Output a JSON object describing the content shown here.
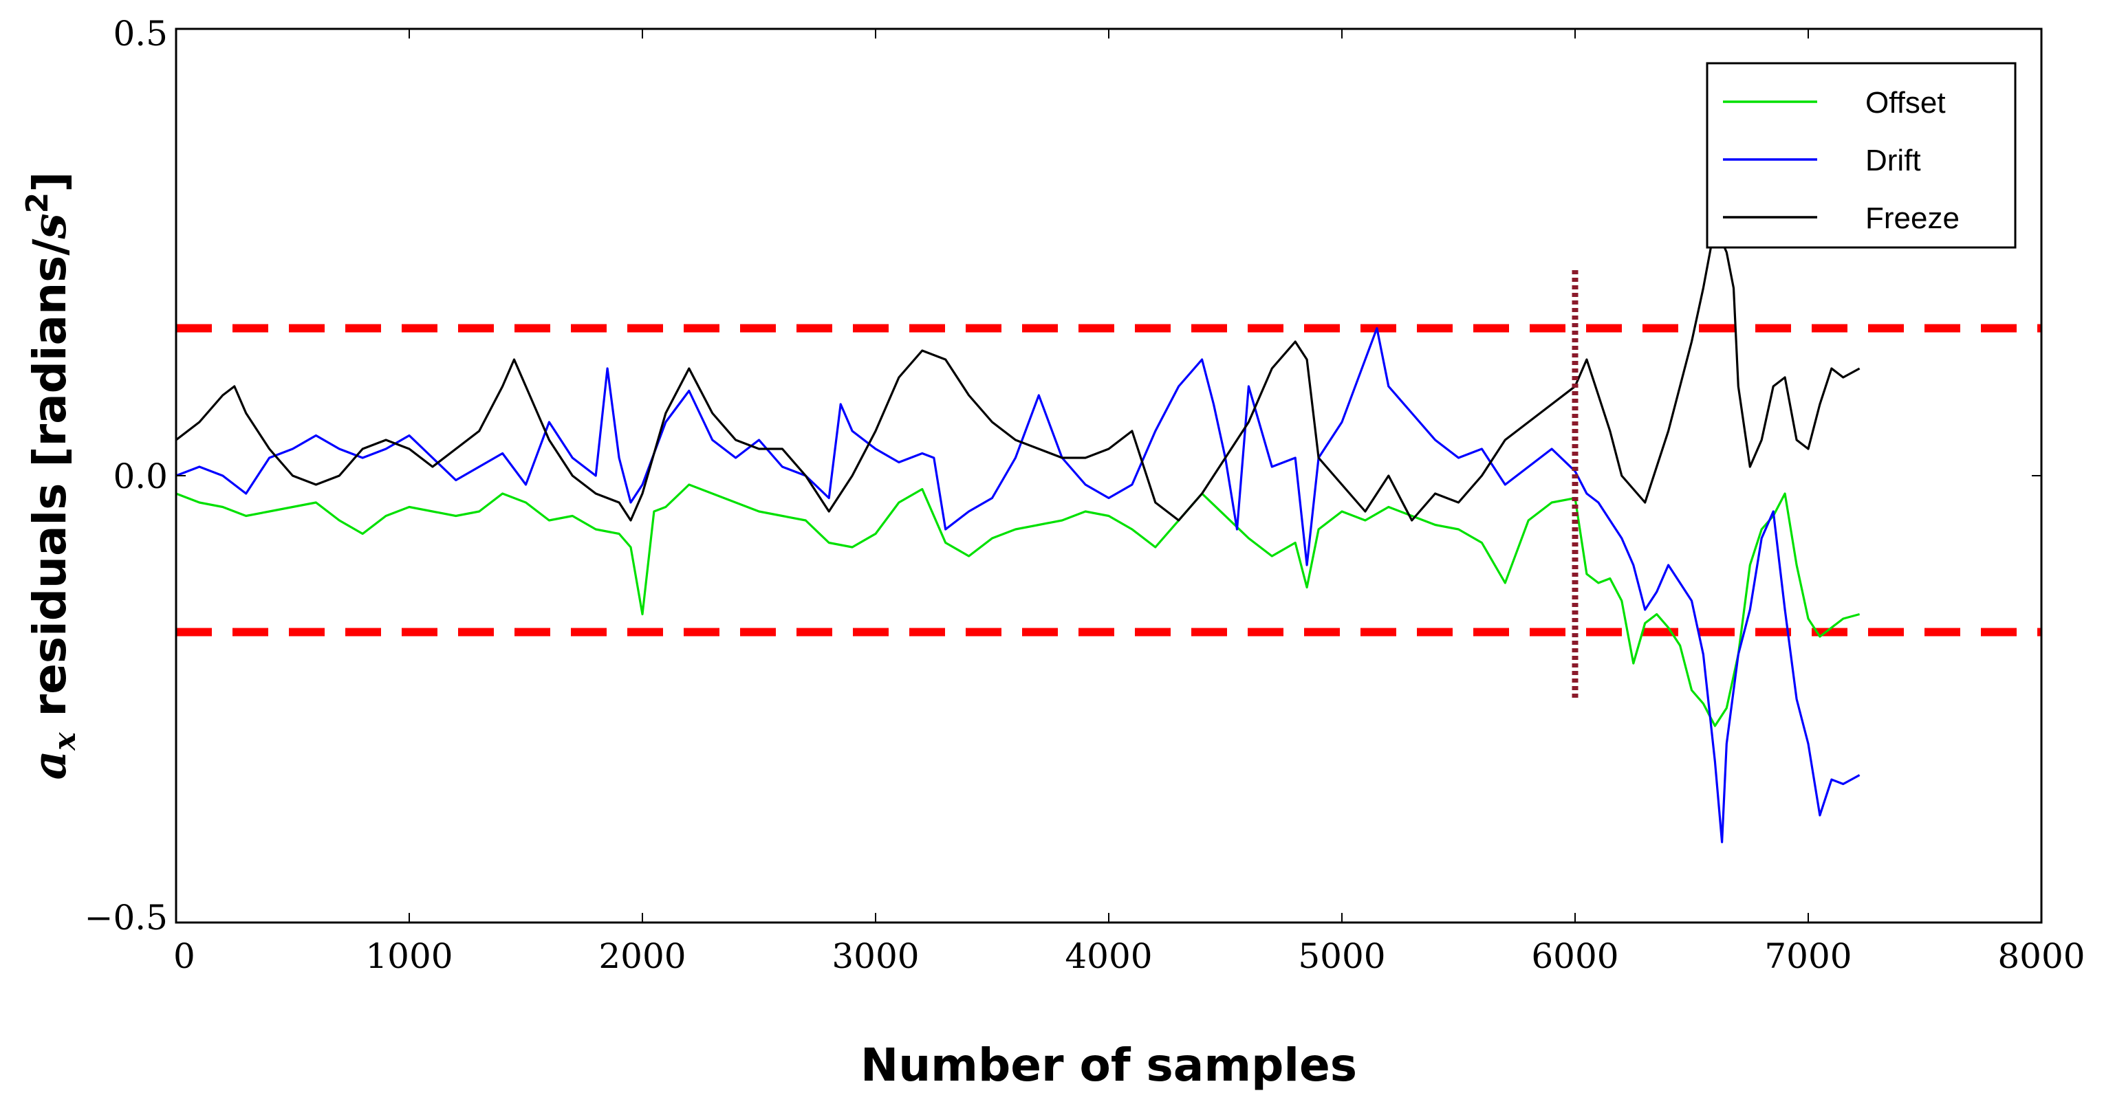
{
  "chart_data": {
    "type": "line",
    "title": "",
    "xlabel": "Number of samples",
    "ylabel": "a_x residuals [radians/s^2]",
    "ylabel_parts": {
      "symbol": "a",
      "subscript": "x",
      "middle": " residuals [radians/",
      "unit_symbol": "s",
      "unit_exp": "2",
      "end": "]"
    },
    "xlim": [
      0,
      8000
    ],
    "ylim": [
      -0.5,
      0.5
    ],
    "x_ticks": [
      0,
      1000,
      2000,
      3000,
      4000,
      5000,
      6000,
      7000,
      8000
    ],
    "x_tick_labels": [
      "0",
      "1000",
      "2000",
      "3000",
      "4000",
      "5000",
      "6000",
      "7000",
      "8000"
    ],
    "y_ticks": [
      -0.5,
      0.0,
      0.5
    ],
    "y_tick_labels": [
      "−0.5",
      "0.0",
      "0.5"
    ],
    "grid": false,
    "legend_position": "top-right",
    "thresholds": [
      {
        "name": "upper-threshold",
        "y": 0.165,
        "color": "#ff0000",
        "style": "dashed"
      },
      {
        "name": "lower-threshold",
        "y": -0.175,
        "color": "#ff0000",
        "style": "dashed"
      }
    ],
    "markers": [
      {
        "name": "fault-onset-marker",
        "x": 6000,
        "y_range": [
          -0.25,
          0.23
        ],
        "color": "#8b1a2b",
        "style": "dotted"
      }
    ],
    "series": [
      {
        "name": "Offset",
        "color": "#00e000",
        "points": [
          [
            0,
            -0.02
          ],
          [
            100,
            -0.03
          ],
          [
            200,
            -0.035
          ],
          [
            300,
            -0.045
          ],
          [
            400,
            -0.04
          ],
          [
            500,
            -0.035
          ],
          [
            600,
            -0.03
          ],
          [
            700,
            -0.05
          ],
          [
            800,
            -0.065
          ],
          [
            900,
            -0.045
          ],
          [
            1000,
            -0.035
          ],
          [
            1100,
            -0.04
          ],
          [
            1200,
            -0.045
          ],
          [
            1300,
            -0.04
          ],
          [
            1400,
            -0.02
          ],
          [
            1500,
            -0.03
          ],
          [
            1600,
            -0.05
          ],
          [
            1700,
            -0.045
          ],
          [
            1800,
            -0.06
          ],
          [
            1900,
            -0.065
          ],
          [
            1950,
            -0.08
          ],
          [
            2000,
            -0.155
          ],
          [
            2050,
            -0.04
          ],
          [
            2100,
            -0.035
          ],
          [
            2200,
            -0.01
          ],
          [
            2300,
            -0.02
          ],
          [
            2400,
            -0.03
          ],
          [
            2500,
            -0.04
          ],
          [
            2600,
            -0.045
          ],
          [
            2700,
            -0.05
          ],
          [
            2800,
            -0.075
          ],
          [
            2900,
            -0.08
          ],
          [
            3000,
            -0.065
          ],
          [
            3100,
            -0.03
          ],
          [
            3200,
            -0.015
          ],
          [
            3300,
            -0.075
          ],
          [
            3400,
            -0.09
          ],
          [
            3500,
            -0.07
          ],
          [
            3600,
            -0.06
          ],
          [
            3700,
            -0.055
          ],
          [
            3800,
            -0.05
          ],
          [
            3900,
            -0.04
          ],
          [
            4000,
            -0.045
          ],
          [
            4100,
            -0.06
          ],
          [
            4200,
            -0.08
          ],
          [
            4300,
            -0.05
          ],
          [
            4400,
            -0.02
          ],
          [
            4500,
            -0.045
          ],
          [
            4600,
            -0.07
          ],
          [
            4700,
            -0.09
          ],
          [
            4800,
            -0.075
          ],
          [
            4850,
            -0.125
          ],
          [
            4900,
            -0.06
          ],
          [
            5000,
            -0.04
          ],
          [
            5100,
            -0.05
          ],
          [
            5200,
            -0.035
          ],
          [
            5300,
            -0.045
          ],
          [
            5400,
            -0.055
          ],
          [
            5500,
            -0.06
          ],
          [
            5600,
            -0.075
          ],
          [
            5700,
            -0.12
          ],
          [
            5800,
            -0.05
          ],
          [
            5900,
            -0.03
          ],
          [
            6000,
            -0.025
          ],
          [
            6050,
            -0.11
          ],
          [
            6100,
            -0.12
          ],
          [
            6150,
            -0.115
          ],
          [
            6200,
            -0.14
          ],
          [
            6250,
            -0.21
          ],
          [
            6300,
            -0.165
          ],
          [
            6350,
            -0.155
          ],
          [
            6400,
            -0.17
          ],
          [
            6450,
            -0.19
          ],
          [
            6500,
            -0.24
          ],
          [
            6550,
            -0.255
          ],
          [
            6600,
            -0.28
          ],
          [
            6650,
            -0.26
          ],
          [
            6700,
            -0.2
          ],
          [
            6750,
            -0.1
          ],
          [
            6800,
            -0.06
          ],
          [
            6850,
            -0.045
          ],
          [
            6900,
            -0.02
          ],
          [
            6950,
            -0.1
          ],
          [
            7000,
            -0.16
          ],
          [
            7050,
            -0.18
          ],
          [
            7100,
            -0.17
          ],
          [
            7150,
            -0.16
          ],
          [
            7220,
            -0.155
          ]
        ]
      },
      {
        "name": "Drift",
        "color": "#0000ff",
        "points": [
          [
            0,
            0.0
          ],
          [
            100,
            0.01
          ],
          [
            200,
            0.0
          ],
          [
            300,
            -0.02
          ],
          [
            400,
            0.02
          ],
          [
            500,
            0.03
          ],
          [
            600,
            0.045
          ],
          [
            700,
            0.03
          ],
          [
            800,
            0.02
          ],
          [
            900,
            0.03
          ],
          [
            1000,
            0.045
          ],
          [
            1100,
            0.02
          ],
          [
            1200,
            -0.005
          ],
          [
            1300,
            0.01
          ],
          [
            1400,
            0.025
          ],
          [
            1500,
            -0.01
          ],
          [
            1600,
            0.06
          ],
          [
            1700,
            0.02
          ],
          [
            1800,
            0.0
          ],
          [
            1850,
            0.12
          ],
          [
            1900,
            0.02
          ],
          [
            1950,
            -0.03
          ],
          [
            2000,
            -0.01
          ],
          [
            2100,
            0.06
          ],
          [
            2200,
            0.095
          ],
          [
            2300,
            0.04
          ],
          [
            2400,
            0.02
          ],
          [
            2500,
            0.04
          ],
          [
            2600,
            0.01
          ],
          [
            2700,
            0.0
          ],
          [
            2800,
            -0.025
          ],
          [
            2850,
            0.08
          ],
          [
            2900,
            0.05
          ],
          [
            3000,
            0.03
          ],
          [
            3100,
            0.015
          ],
          [
            3200,
            0.025
          ],
          [
            3250,
            0.02
          ],
          [
            3300,
            -0.06
          ],
          [
            3400,
            -0.04
          ],
          [
            3500,
            -0.025
          ],
          [
            3600,
            0.02
          ],
          [
            3700,
            0.09
          ],
          [
            3800,
            0.02
          ],
          [
            3900,
            -0.01
          ],
          [
            4000,
            -0.025
          ],
          [
            4100,
            -0.01
          ],
          [
            4200,
            0.05
          ],
          [
            4300,
            0.1
          ],
          [
            4400,
            0.13
          ],
          [
            4450,
            0.08
          ],
          [
            4500,
            0.02
          ],
          [
            4550,
            -0.06
          ],
          [
            4600,
            0.1
          ],
          [
            4700,
            0.01
          ],
          [
            4800,
            0.02
          ],
          [
            4850,
            -0.1
          ],
          [
            4900,
            0.02
          ],
          [
            5000,
            0.06
          ],
          [
            5100,
            0.13
          ],
          [
            5150,
            0.165
          ],
          [
            5200,
            0.1
          ],
          [
            5300,
            0.07
          ],
          [
            5400,
            0.04
          ],
          [
            5500,
            0.02
          ],
          [
            5600,
            0.03
          ],
          [
            5700,
            -0.01
          ],
          [
            5800,
            0.01
          ],
          [
            5900,
            0.03
          ],
          [
            6000,
            0.005
          ],
          [
            6050,
            -0.02
          ],
          [
            6100,
            -0.03
          ],
          [
            6150,
            -0.05
          ],
          [
            6200,
            -0.07
          ],
          [
            6250,
            -0.1
          ],
          [
            6300,
            -0.15
          ],
          [
            6350,
            -0.13
          ],
          [
            6400,
            -0.1
          ],
          [
            6450,
            -0.12
          ],
          [
            6500,
            -0.14
          ],
          [
            6550,
            -0.2
          ],
          [
            6600,
            -0.32
          ],
          [
            6630,
            -0.41
          ],
          [
            6650,
            -0.3
          ],
          [
            6700,
            -0.2
          ],
          [
            6750,
            -0.15
          ],
          [
            6800,
            -0.07
          ],
          [
            6850,
            -0.04
          ],
          [
            6900,
            -0.15
          ],
          [
            6950,
            -0.25
          ],
          [
            7000,
            -0.3
          ],
          [
            7050,
            -0.38
          ],
          [
            7100,
            -0.34
          ],
          [
            7150,
            -0.345
          ],
          [
            7220,
            -0.335
          ]
        ]
      },
      {
        "name": "Freeze",
        "color": "#000000",
        "points": [
          [
            0,
            0.04
          ],
          [
            100,
            0.06
          ],
          [
            200,
            0.09
          ],
          [
            250,
            0.1
          ],
          [
            300,
            0.07
          ],
          [
            400,
            0.03
          ],
          [
            500,
            0.0
          ],
          [
            600,
            -0.01
          ],
          [
            700,
            0.0
          ],
          [
            800,
            0.03
          ],
          [
            900,
            0.04
          ],
          [
            1000,
            0.03
          ],
          [
            1100,
            0.01
          ],
          [
            1200,
            0.03
          ],
          [
            1300,
            0.05
          ],
          [
            1400,
            0.1
          ],
          [
            1450,
            0.13
          ],
          [
            1500,
            0.1
          ],
          [
            1600,
            0.04
          ],
          [
            1700,
            0.0
          ],
          [
            1800,
            -0.02
          ],
          [
            1900,
            -0.03
          ],
          [
            1950,
            -0.05
          ],
          [
            2000,
            -0.02
          ],
          [
            2100,
            0.07
          ],
          [
            2200,
            0.12
          ],
          [
            2300,
            0.07
          ],
          [
            2400,
            0.04
          ],
          [
            2500,
            0.03
          ],
          [
            2600,
            0.03
          ],
          [
            2700,
            0.0
          ],
          [
            2800,
            -0.04
          ],
          [
            2900,
            0.0
          ],
          [
            3000,
            0.05
          ],
          [
            3100,
            0.11
          ],
          [
            3200,
            0.14
          ],
          [
            3300,
            0.13
          ],
          [
            3400,
            0.09
          ],
          [
            3500,
            0.06
          ],
          [
            3600,
            0.04
          ],
          [
            3700,
            0.03
          ],
          [
            3800,
            0.02
          ],
          [
            3900,
            0.02
          ],
          [
            4000,
            0.03
          ],
          [
            4100,
            0.05
          ],
          [
            4200,
            -0.03
          ],
          [
            4300,
            -0.05
          ],
          [
            4400,
            -0.02
          ],
          [
            4500,
            0.02
          ],
          [
            4600,
            0.06
          ],
          [
            4700,
            0.12
          ],
          [
            4800,
            0.15
          ],
          [
            4850,
            0.13
          ],
          [
            4900,
            0.02
          ],
          [
            5000,
            -0.01
          ],
          [
            5100,
            -0.04
          ],
          [
            5200,
            0.0
          ],
          [
            5300,
            -0.05
          ],
          [
            5400,
            -0.02
          ],
          [
            5500,
            -0.03
          ],
          [
            5600,
            0.0
          ],
          [
            5700,
            0.04
          ],
          [
            5800,
            0.06
          ],
          [
            5900,
            0.08
          ],
          [
            6000,
            0.1
          ],
          [
            6050,
            0.13
          ],
          [
            6100,
            0.09
          ],
          [
            6150,
            0.05
          ],
          [
            6200,
            0.0
          ],
          [
            6300,
            -0.03
          ],
          [
            6400,
            0.05
          ],
          [
            6500,
            0.15
          ],
          [
            6550,
            0.21
          ],
          [
            6600,
            0.28
          ],
          [
            6650,
            0.25
          ],
          [
            6680,
            0.21
          ],
          [
            6700,
            0.1
          ],
          [
            6750,
            0.01
          ],
          [
            6800,
            0.04
          ],
          [
            6850,
            0.1
          ],
          [
            6900,
            0.11
          ],
          [
            6950,
            0.04
          ],
          [
            7000,
            0.03
          ],
          [
            7050,
            0.08
          ],
          [
            7100,
            0.12
          ],
          [
            7150,
            0.11
          ],
          [
            7220,
            0.12
          ]
        ]
      }
    ]
  }
}
